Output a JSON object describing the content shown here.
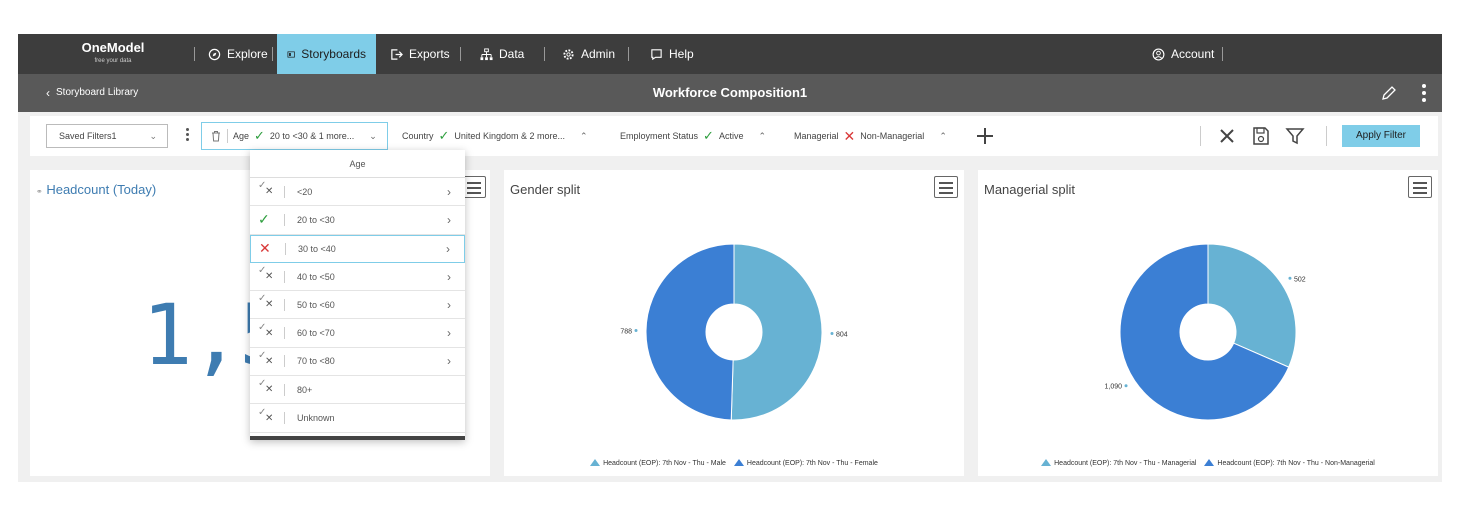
{
  "nav": {
    "logo": "OneModel",
    "tagline": "free your data",
    "items": [
      "Explore",
      "Storyboards",
      "Exports",
      "Data",
      "Admin",
      "Help"
    ],
    "account": "Account"
  },
  "titlebar": {
    "back": "Storyboard Library",
    "title": "Workforce Composition1"
  },
  "filters": {
    "saved_filters": "Saved Filters1",
    "age": {
      "label": "Age",
      "value": "20 to <30 & 1 more..."
    },
    "country": {
      "label": "Country",
      "value": "United Kingdom & 2 more..."
    },
    "employment": {
      "label": "Employment Status",
      "value": "Active"
    },
    "managerial": {
      "label": "Managerial",
      "value": "Non-Managerial"
    },
    "apply": "Apply Filter"
  },
  "dropdown": {
    "title": "Age",
    "items": [
      {
        "label": "<20",
        "state": "mixed",
        "arrow": true
      },
      {
        "label": "20 to <30",
        "state": "included",
        "arrow": true
      },
      {
        "label": "30 to <40",
        "state": "excluded",
        "arrow": true
      },
      {
        "label": "40 to <50",
        "state": "mixed",
        "arrow": true
      },
      {
        "label": "50 to <60",
        "state": "mixed",
        "arrow": true
      },
      {
        "label": "60 to <70",
        "state": "mixed",
        "arrow": true
      },
      {
        "label": "70 to <80",
        "state": "mixed",
        "arrow": true
      },
      {
        "label": "80+",
        "state": "mixed",
        "arrow": false
      },
      {
        "label": "Unknown",
        "state": "mixed",
        "arrow": false
      }
    ]
  },
  "headcount": {
    "title": "Headcount (Today)",
    "value": "1,5"
  },
  "colors": {
    "dark": "#3b7fd4",
    "light": "#67b2d3",
    "accent": "#7fcde8"
  },
  "chart_data": [
    {
      "type": "pie",
      "title": "Gender split",
      "series": [
        {
          "name": "Headcount (EOP): 7th Nov - Thu - Male",
          "value": 804
        },
        {
          "name": "Headcount (EOP): 7th Nov - Thu - Female",
          "value": 788
        }
      ]
    },
    {
      "type": "pie",
      "title": "Managerial split",
      "series": [
        {
          "name": "Headcount (EOP): 7th Nov - Thu - Managerial",
          "value": 502
        },
        {
          "name": "Headcount (EOP): 7th Nov - Thu - Non-Managerial",
          "value": 1090
        }
      ]
    }
  ],
  "chart_labels": [
    "804",
    "788",
    "502",
    "1,090"
  ]
}
